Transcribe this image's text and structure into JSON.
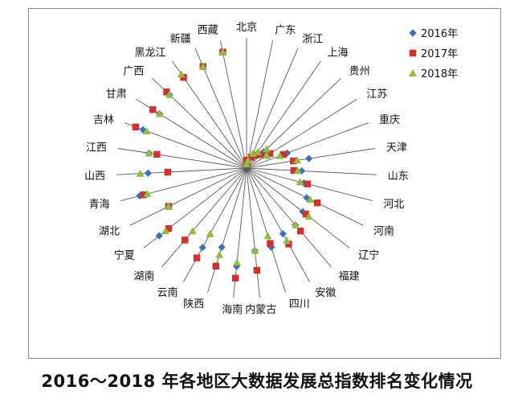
{
  "chart_data": {
    "type": "radar",
    "caption": "2016～2018 年各地区大数据发展总指数排名变化情况",
    "categories": [
      "北京",
      "广东",
      "浙江",
      "上海",
      "贵州",
      "江苏",
      "重庆",
      "天津",
      "山东",
      "河北",
      "河南",
      "辽宁",
      "福建",
      "安徽",
      "四川",
      "内蒙古",
      "海南",
      "陕西",
      "云南",
      "湖南",
      "宁夏",
      "湖北",
      "青海",
      "山西",
      "江西",
      "吉林",
      "甘肃",
      "广西",
      "黑龙江",
      "新疆",
      "西藏"
    ],
    "rlim": [
      0,
      33
    ],
    "series": [
      {
        "name": "2016年",
        "color": "#3a6fc4",
        "marker": "diamond",
        "values": [
          2,
          1,
          3,
          4,
          6,
          6,
          11,
          16,
          14,
          15,
          17,
          18,
          19,
          19,
          21,
          21,
          25,
          21,
          23,
          24,
          28,
          22,
          28,
          25,
          25,
          28,
          26,
          27,
          28,
          28,
          30
        ]
      },
      {
        "name": "2017年",
        "color": "#d42e2e",
        "marker": "square",
        "values": [
          2,
          1,
          3,
          4,
          5,
          7,
          10,
          12,
          12,
          16,
          20,
          19,
          21,
          22,
          20,
          26,
          28,
          26,
          26,
          24,
          25,
          22,
          27,
          20,
          23,
          30,
          28,
          28,
          28,
          28,
          30
        ]
      },
      {
        "name": "2018年",
        "color": "#8dbe3d",
        "marker": "triangle",
        "values": [
          1,
          2,
          4,
          5,
          7,
          6,
          9,
          13,
          13,
          14,
          18,
          20,
          19,
          21,
          18,
          21,
          24,
          23,
          19,
          21,
          26,
          22,
          26,
          27,
          25,
          27,
          26,
          27,
          29,
          28,
          30
        ]
      }
    ],
    "legend_position": "top-right"
  }
}
